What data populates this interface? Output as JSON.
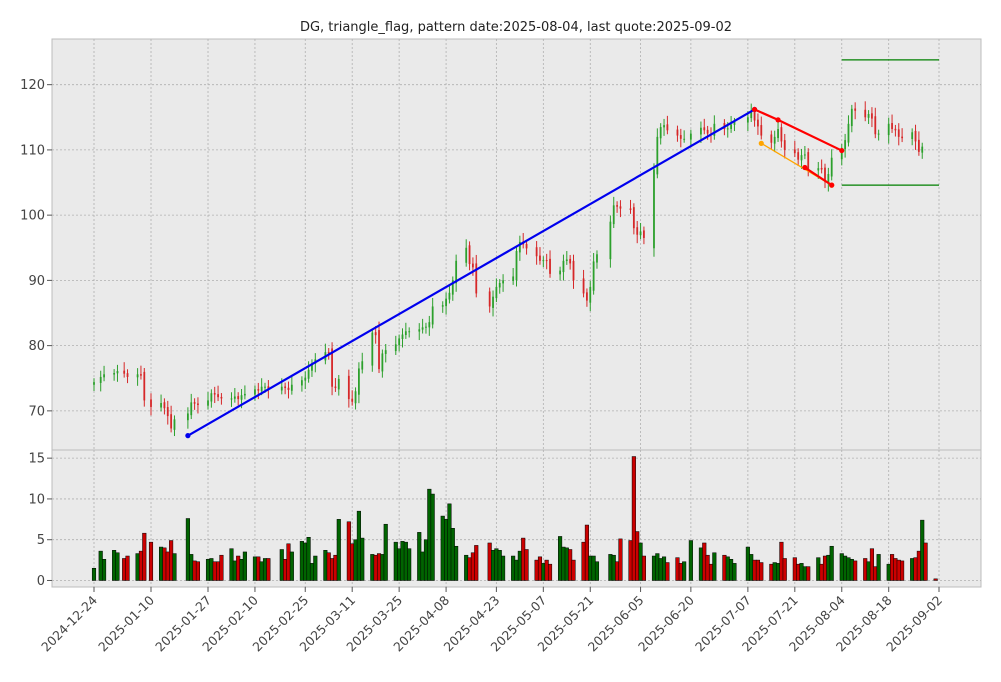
{
  "chart_data": {
    "type": "candlestick",
    "title": "DG, triangle_flag, pattern date:2025-08-04, last quote:2025-09-02",
    "x_tick_labels": [
      "2024-12-24",
      "2025-01-10",
      "2025-01-27",
      "2025-02-10",
      "2025-02-25",
      "2025-03-11",
      "2025-03-25",
      "2025-04-08",
      "2025-04-23",
      "2025-05-07",
      "2025-05-21",
      "2025-06-05",
      "2025-06-20",
      "2025-07-07",
      "2025-07-21",
      "2025-08-04",
      "2025-08-18",
      "2025-09-02"
    ],
    "price_axis": {
      "ylim": [
        64,
        127
      ],
      "ticks": [
        70,
        80,
        90,
        100,
        110,
        120
      ]
    },
    "volume_axis": {
      "ylim": [
        -0.8,
        16
      ],
      "ticks": [
        0,
        5,
        10,
        15
      ]
    },
    "grid": true,
    "colors": {
      "up": "#2ca02c",
      "down": "#d62728",
      "vol_up": "#006400",
      "vol_down": "#cc0000",
      "trend": "#0000ee",
      "flag": "#ff0000",
      "flag_inner": "#ffa500",
      "level": "#008000",
      "panel_bg": "#eaeaea"
    },
    "closes": [
      74.4,
      75.2,
      75.6,
      75.8,
      76.1,
      75.7,
      75.2,
      75.6,
      75.4,
      71.6,
      70.6,
      71.2,
      70.4,
      69.2,
      67.3,
      68.7,
      69.6,
      71.3,
      71.1,
      70.9,
      71.6,
      72.7,
      72.5,
      72.1,
      71.9,
      71.9,
      72.2,
      71.8,
      72.4,
      72.6,
      73.3,
      73.1,
      73.7,
      73.7,
      73.2,
      73.7,
      73.5,
      73.2,
      74.0,
      74.7,
      75.1,
      76.3,
      77.3,
      77.9,
      79.0,
      78.8,
      73.7,
      73.5,
      74.9,
      71.8,
      71.4,
      73.0,
      76.5,
      77.6,
      82.0,
      81.6,
      76.4,
      78.8,
      79.3,
      80.2,
      81.1,
      81.7,
      82.2,
      82.2,
      82.5,
      82.8,
      82.9,
      83.6,
      86.0,
      86.2,
      87.2,
      88.1,
      90.0,
      93.0,
      95.0,
      92.5,
      92.0,
      88.0,
      86.0,
      87.5,
      89.0,
      89.6,
      90.0,
      90.6,
      94.5,
      95.9,
      95.5,
      94.9,
      93.7,
      93.0,
      93.1,
      93.0,
      91.0,
      91.5,
      93.0,
      93.2,
      92.6,
      90.0,
      88.0,
      86.9,
      89.0,
      92.9,
      94.0,
      99.0,
      101.5,
      101.3,
      101.0,
      100.8,
      98.0,
      97.0,
      97.5,
      96.5,
      107.0,
      112.0,
      113.5,
      113.8,
      113.0,
      112.2,
      111.7,
      111.7,
      112.5,
      113.4,
      113.0,
      112.5,
      112.4,
      114.0,
      113.2,
      113.3,
      113.9,
      114.3,
      115.0,
      115.8,
      114.5,
      113.6,
      112.2,
      111.1,
      112.0,
      113.2,
      111.3,
      110.0,
      109.5,
      108.5,
      109.2,
      109.3,
      106.9,
      107.2,
      107.0,
      105.1,
      106.3,
      108.8,
      110.3,
      111.5,
      114.0,
      116.3,
      116.0,
      115.0,
      115.5,
      114.8,
      112.4,
      112.5,
      114.0,
      113.2,
      113.0,
      112.0,
      111.8,
      112.7,
      111.3,
      109.7,
      110.5
    ],
    "volumes": [
      1.5,
      3.6,
      2.6,
      3.7,
      3.4,
      2.7,
      3.0,
      3.3,
      3.6,
      5.8,
      4.7,
      4.1,
      4.0,
      3.5,
      4.9,
      3.3,
      7.6,
      3.2,
      2.4,
      2.3,
      2.6,
      2.7,
      2.3,
      2.3,
      3.1,
      3.9,
      2.4,
      3.0,
      2.6,
      3.5,
      2.9,
      2.9,
      2.3,
      2.7,
      2.7,
      3.8,
      2.6,
      4.5,
      3.5,
      4.8,
      4.6,
      5.3,
      2.1,
      3.0,
      3.7,
      3.4,
      2.7,
      3.1,
      7.5,
      7.2,
      4.5,
      5.0,
      8.5,
      5.2,
      3.2,
      3.1,
      3.3,
      3.2,
      6.9,
      4.7,
      3.9,
      4.8,
      4.7,
      3.9,
      5.9,
      3.5,
      5.0,
      11.2,
      10.6,
      7.9,
      7.5,
      9.4,
      6.4,
      4.2,
      3.1,
      2.8,
      3.4,
      4.3,
      4.6,
      3.7,
      3.9,
      3.7,
      3.0,
      3.0,
      2.5,
      3.6,
      5.2,
      3.8,
      2.5,
      2.9,
      2.1,
      2.5,
      2.0,
      5.4,
      4.1,
      4.0,
      3.8,
      2.5,
      4.7,
      6.8,
      3.0,
      3.0,
      2.3,
      3.2,
      3.1,
      2.3,
      5.1,
      4.9,
      15.2,
      6.0,
      4.6,
      3.0,
      3.0,
      3.3,
      2.7,
      2.9,
      2.2,
      2.8,
      2.1,
      2.3,
      4.9,
      4.0,
      4.6,
      3.1,
      2.0,
      3.4,
      3.1,
      2.9,
      2.6,
      2.1,
      4.1,
      3.2,
      2.5,
      2.5,
      2.2,
      2.0,
      2.2,
      2.1,
      4.7,
      2.7,
      2.8,
      2.0,
      2.1,
      1.7,
      1.7,
      2.8,
      2.0,
      3.0,
      3.1,
      4.2,
      3.3,
      3.0,
      2.8,
      2.6,
      2.4,
      2.7,
      2.3,
      3.9,
      1.7,
      3.2,
      2.0,
      3.2,
      2.7,
      2.5,
      2.4,
      2.7,
      2.8,
      3.6,
      7.4,
      4.6,
      0.2
    ],
    "trend_line": {
      "from": [
        "2025-01-21",
        66.2
      ],
      "to": [
        "2025-07-09",
        116.2
      ]
    },
    "flag_upper": {
      "points": [
        [
          "2025-07-09",
          116.2
        ],
        [
          "2025-07-16",
          114.6
        ],
        [
          "2025-08-04",
          109.9
        ]
      ]
    },
    "flag_lower": {
      "points": [
        [
          "2025-07-24",
          107.3
        ],
        [
          "2025-08-01",
          104.6
        ]
      ]
    },
    "flag_inner_line": {
      "points": [
        [
          "2025-07-11",
          111.0
        ],
        [
          "2025-08-01",
          104.6
        ]
      ]
    },
    "levels": [
      {
        "value": 123.8,
        "from": "2025-08-04",
        "to": "2025-09-02"
      },
      {
        "value": 104.6,
        "from": "2025-08-04",
        "to": "2025-09-02"
      }
    ]
  }
}
